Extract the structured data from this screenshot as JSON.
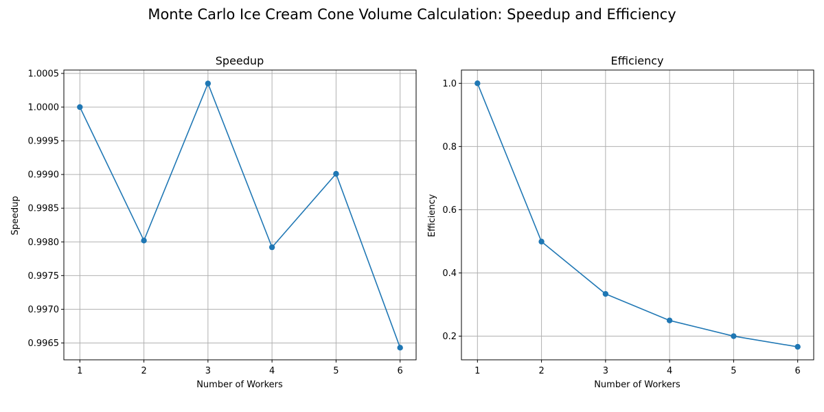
{
  "figure": {
    "title": "Monte Carlo Ice Cream Cone Volume Calculation: Speedup and Efficiency"
  },
  "chart_data": [
    {
      "type": "line",
      "title": "Speedup",
      "xlabel": "Number of Workers",
      "ylabel": "Speedup",
      "x": [
        1,
        2,
        3,
        4,
        5,
        6
      ],
      "y": [
        1.0,
        0.99802,
        1.00035,
        0.99792,
        0.99901,
        0.99643
      ],
      "xlim": [
        0.75,
        6.25
      ],
      "ylim": [
        0.99625,
        1.00055
      ],
      "xticks": [
        1,
        2,
        3,
        4,
        5,
        6
      ],
      "xtick_labels": [
        "1",
        "2",
        "3",
        "4",
        "5",
        "6"
      ],
      "yticks": [
        0.9965,
        0.997,
        0.9975,
        0.998,
        0.9985,
        0.999,
        0.9995,
        1.0,
        1.0005
      ],
      "ytick_labels": [
        "0.9965",
        "0.9970",
        "0.9975",
        "0.9980",
        "0.9985",
        "0.9990",
        "0.9995",
        "1.0000",
        "1.0005"
      ],
      "grid": true,
      "color": "#1f77b4",
      "marker": "circle"
    },
    {
      "type": "line",
      "title": "Efficiency",
      "xlabel": "Number of Workers",
      "ylabel": "Efficiency",
      "x": [
        1,
        2,
        3,
        4,
        5,
        6
      ],
      "y": [
        1.0,
        0.499,
        0.3335,
        0.2495,
        0.1998,
        0.1661
      ],
      "xlim": [
        0.75,
        6.25
      ],
      "ylim": [
        0.125,
        1.042
      ],
      "xticks": [
        1,
        2,
        3,
        4,
        5,
        6
      ],
      "xtick_labels": [
        "1",
        "2",
        "3",
        "4",
        "5",
        "6"
      ],
      "yticks": [
        0.2,
        0.4,
        0.6,
        0.8,
        1.0
      ],
      "ytick_labels": [
        "0.2",
        "0.4",
        "0.6",
        "0.8",
        "1.0"
      ],
      "grid": true,
      "color": "#1f77b4",
      "marker": "circle"
    }
  ]
}
